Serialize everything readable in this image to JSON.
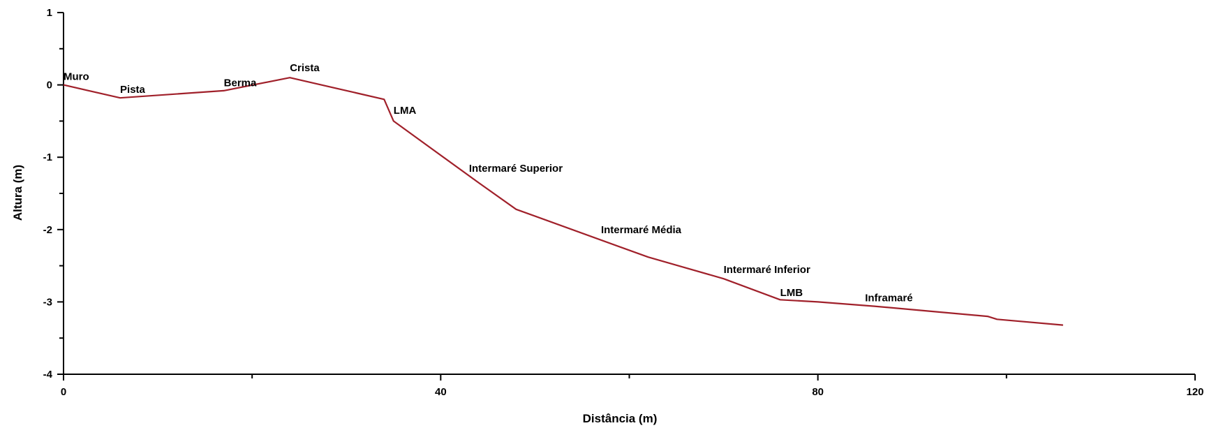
{
  "chart_data": {
    "type": "line",
    "title": "",
    "xlabel": "Distância (m)",
    "ylabel": "Altura (m)",
    "xlim": [
      0,
      120
    ],
    "ylim": [
      -4,
      1
    ],
    "x_ticks": [
      0,
      40,
      80,
      120
    ],
    "x_minor_ticks": [
      20,
      60,
      100
    ],
    "y_ticks": [
      1,
      0,
      -1,
      -2,
      -3,
      -4
    ],
    "grid": false,
    "line_color": "#a0202a",
    "series": [
      {
        "x": [
          0,
          6,
          17,
          24,
          34,
          35,
          44,
          48,
          62,
          70,
          76,
          80,
          86,
          92,
          98,
          99,
          106
        ],
        "y": [
          0,
          -0.18,
          -0.08,
          0.1,
          -0.2,
          -0.5,
          -1.35,
          -1.72,
          -2.38,
          -2.68,
          -2.97,
          -3.0,
          -3.06,
          -3.13,
          -3.2,
          -3.24,
          -3.32
        ]
      }
    ],
    "annotations": [
      {
        "text": "Muro",
        "x": 0,
        "y": 0.07
      },
      {
        "text": "Pista",
        "x": 6,
        "y": -0.11
      },
      {
        "text": "Berma",
        "x": 17,
        "y": -0.02
      },
      {
        "text": "Crista",
        "x": 24,
        "y": 0.19
      },
      {
        "text": "LMA",
        "x": 35,
        "y": -0.4
      },
      {
        "text": "Intermaré Superior",
        "x": 43,
        "y": -1.2
      },
      {
        "text": "Intermaré Média",
        "x": 57,
        "y": -2.05
      },
      {
        "text": "Intermaré Inferior",
        "x": 70,
        "y": -2.6
      },
      {
        "text": "LMB",
        "x": 76,
        "y": -2.92
      },
      {
        "text": "Inframaré",
        "x": 85,
        "y": -2.99
      }
    ]
  }
}
